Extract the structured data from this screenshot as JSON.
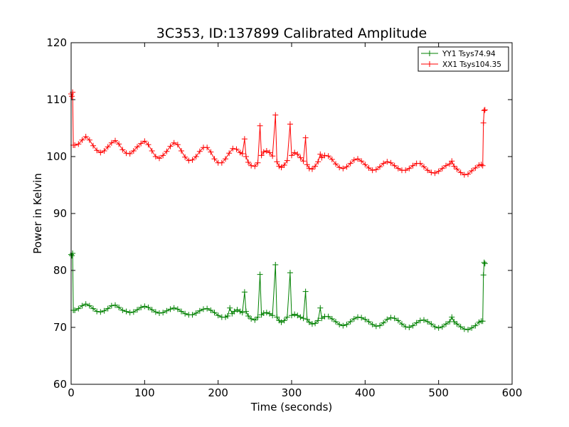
{
  "chart_data": {
    "type": "line",
    "title": "3C353, ID:137899 Calibrated Amplitude",
    "xlabel": "Time (seconds)",
    "ylabel": "Power in Kelvin",
    "xlim": [
      0,
      600
    ],
    "ylim": [
      60,
      120
    ],
    "xticks": [
      "0",
      "100",
      "200",
      "300",
      "400",
      "500",
      "600"
    ],
    "yticks": [
      "60",
      "70",
      "80",
      "90",
      "100",
      "110",
      "120"
    ],
    "grid": false,
    "legend_position": "top-right",
    "series": [
      {
        "name": "YY1 Tsys74.94",
        "color": "#008000",
        "marker": "+",
        "points": [
          [
            0,
            82.8
          ],
          [
            1,
            82.6
          ],
          [
            2,
            83.0
          ],
          [
            3,
            73.0
          ],
          [
            5,
            73.0
          ],
          [
            10,
            73.3
          ],
          [
            15,
            73.8
          ],
          [
            20,
            74.1
          ],
          [
            25,
            73.8
          ],
          [
            30,
            73.3
          ],
          [
            35,
            72.8
          ],
          [
            40,
            72.7
          ],
          [
            45,
            72.9
          ],
          [
            50,
            73.3
          ],
          [
            55,
            73.8
          ],
          [
            60,
            73.9
          ],
          [
            65,
            73.5
          ],
          [
            70,
            73.0
          ],
          [
            75,
            72.8
          ],
          [
            80,
            72.6
          ],
          [
            85,
            72.7
          ],
          [
            90,
            73.1
          ],
          [
            95,
            73.5
          ],
          [
            100,
            73.7
          ],
          [
            105,
            73.5
          ],
          [
            110,
            73.1
          ],
          [
            115,
            72.7
          ],
          [
            120,
            72.5
          ],
          [
            125,
            72.6
          ],
          [
            130,
            72.9
          ],
          [
            135,
            73.2
          ],
          [
            140,
            73.4
          ],
          [
            145,
            73.2
          ],
          [
            150,
            72.8
          ],
          [
            155,
            72.4
          ],
          [
            160,
            72.2
          ],
          [
            165,
            72.2
          ],
          [
            170,
            72.5
          ],
          [
            175,
            72.9
          ],
          [
            180,
            73.2
          ],
          [
            185,
            73.3
          ],
          [
            190,
            73.0
          ],
          [
            195,
            72.6
          ],
          [
            200,
            72.1
          ],
          [
            205,
            71.8
          ],
          [
            210,
            71.8
          ],
          [
            213,
            72.0
          ],
          [
            216,
            73.4
          ],
          [
            219,
            72.4
          ],
          [
            222,
            72.8
          ],
          [
            226,
            73.1
          ],
          [
            230,
            72.8
          ],
          [
            233,
            72.6
          ],
          [
            236,
            76.2
          ],
          [
            238,
            72.8
          ],
          [
            241,
            72.0
          ],
          [
            245,
            71.5
          ],
          [
            250,
            71.3
          ],
          [
            254,
            71.8
          ],
          [
            257,
            79.3
          ],
          [
            259,
            72.2
          ],
          [
            262,
            72.5
          ],
          [
            266,
            72.6
          ],
          [
            270,
            72.4
          ],
          [
            274,
            72.1
          ],
          [
            278,
            81.0
          ],
          [
            280,
            71.8
          ],
          [
            283,
            71.2
          ],
          [
            286,
            70.9
          ],
          [
            290,
            71.2
          ],
          [
            294,
            71.8
          ],
          [
            298,
            79.6
          ],
          [
            300,
            72.1
          ],
          [
            304,
            72.3
          ],
          [
            308,
            72.1
          ],
          [
            312,
            71.8
          ],
          [
            316,
            71.6
          ],
          [
            319,
            76.3
          ],
          [
            321,
            71.4
          ],
          [
            324,
            70.9
          ],
          [
            328,
            70.6
          ],
          [
            332,
            70.7
          ],
          [
            336,
            71.2
          ],
          [
            339,
            73.4
          ],
          [
            341,
            71.6
          ],
          [
            345,
            71.9
          ],
          [
            350,
            71.9
          ],
          [
            355,
            71.5
          ],
          [
            360,
            71.0
          ],
          [
            365,
            70.5
          ],
          [
            370,
            70.3
          ],
          [
            375,
            70.5
          ],
          [
            380,
            71.0
          ],
          [
            385,
            71.5
          ],
          [
            390,
            71.8
          ],
          [
            395,
            71.7
          ],
          [
            400,
            71.4
          ],
          [
            405,
            71.0
          ],
          [
            410,
            70.5
          ],
          [
            415,
            70.2
          ],
          [
            420,
            70.3
          ],
          [
            425,
            70.8
          ],
          [
            430,
            71.4
          ],
          [
            435,
            71.7
          ],
          [
            440,
            71.6
          ],
          [
            445,
            71.2
          ],
          [
            450,
            70.6
          ],
          [
            455,
            70.1
          ],
          [
            460,
            70.0
          ],
          [
            465,
            70.3
          ],
          [
            470,
            70.8
          ],
          [
            475,
            71.2
          ],
          [
            480,
            71.3
          ],
          [
            485,
            71.0
          ],
          [
            490,
            70.6
          ],
          [
            495,
            70.1
          ],
          [
            500,
            69.9
          ],
          [
            505,
            70.1
          ],
          [
            510,
            70.6
          ],
          [
            515,
            71.0
          ],
          [
            518,
            71.8
          ],
          [
            521,
            71.0
          ],
          [
            525,
            70.6
          ],
          [
            530,
            70.1
          ],
          [
            535,
            69.7
          ],
          [
            540,
            69.6
          ],
          [
            545,
            69.9
          ],
          [
            550,
            70.3
          ],
          [
            555,
            70.9
          ],
          [
            558,
            71.1
          ],
          [
            560,
            71.1
          ],
          [
            561,
            79.2
          ],
          [
            562,
            81.4
          ],
          [
            563,
            81.2
          ]
        ]
      },
      {
        "name": "XX1 Tsys104.35",
        "color": "#ff0000",
        "marker": "+",
        "points": [
          [
            0,
            111.0
          ],
          [
            1,
            110.6
          ],
          [
            2,
            111.3
          ],
          [
            3,
            102.0
          ],
          [
            5,
            102.0
          ],
          [
            10,
            102.2
          ],
          [
            15,
            102.9
          ],
          [
            20,
            103.5
          ],
          [
            25,
            102.9
          ],
          [
            30,
            101.9
          ],
          [
            35,
            101.1
          ],
          [
            40,
            100.7
          ],
          [
            45,
            101.0
          ],
          [
            50,
            101.7
          ],
          [
            55,
            102.4
          ],
          [
            60,
            102.8
          ],
          [
            65,
            102.2
          ],
          [
            70,
            101.2
          ],
          [
            75,
            100.6
          ],
          [
            80,
            100.5
          ],
          [
            85,
            101.0
          ],
          [
            90,
            101.7
          ],
          [
            95,
            102.3
          ],
          [
            100,
            102.7
          ],
          [
            105,
            102.1
          ],
          [
            110,
            101.0
          ],
          [
            115,
            100.0
          ],
          [
            120,
            99.7
          ],
          [
            125,
            100.2
          ],
          [
            130,
            100.9
          ],
          [
            135,
            101.8
          ],
          [
            140,
            102.4
          ],
          [
            145,
            102.1
          ],
          [
            150,
            101.0
          ],
          [
            155,
            99.9
          ],
          [
            160,
            99.3
          ],
          [
            165,
            99.4
          ],
          [
            170,
            100.0
          ],
          [
            175,
            100.9
          ],
          [
            180,
            101.6
          ],
          [
            185,
            101.6
          ],
          [
            190,
            100.8
          ],
          [
            195,
            99.6
          ],
          [
            200,
            98.9
          ],
          [
            205,
            98.9
          ],
          [
            210,
            99.6
          ],
          [
            215,
            100.6
          ],
          [
            220,
            101.4
          ],
          [
            225,
            101.3
          ],
          [
            230,
            100.7
          ],
          [
            233,
            100.5
          ],
          [
            236,
            103.1
          ],
          [
            238,
            100.0
          ],
          [
            241,
            99.0
          ],
          [
            245,
            98.4
          ],
          [
            250,
            98.3
          ],
          [
            254,
            98.9
          ],
          [
            257,
            105.4
          ],
          [
            259,
            100.2
          ],
          [
            262,
            100.8
          ],
          [
            266,
            101.0
          ],
          [
            270,
            100.7
          ],
          [
            274,
            100.1
          ],
          [
            278,
            107.3
          ],
          [
            280,
            99.1
          ],
          [
            283,
            98.3
          ],
          [
            286,
            98.1
          ],
          [
            290,
            98.5
          ],
          [
            294,
            99.3
          ],
          [
            298,
            105.7
          ],
          [
            300,
            100.2
          ],
          [
            304,
            100.7
          ],
          [
            308,
            100.4
          ],
          [
            312,
            99.8
          ],
          [
            316,
            99.2
          ],
          [
            319,
            103.3
          ],
          [
            321,
            98.6
          ],
          [
            324,
            97.9
          ],
          [
            328,
            97.8
          ],
          [
            332,
            98.3
          ],
          [
            336,
            99.1
          ],
          [
            339,
            100.4
          ],
          [
            341,
            99.8
          ],
          [
            345,
            100.2
          ],
          [
            350,
            100.1
          ],
          [
            355,
            99.5
          ],
          [
            360,
            98.7
          ],
          [
            365,
            98.1
          ],
          [
            370,
            97.9
          ],
          [
            375,
            98.2
          ],
          [
            380,
            98.8
          ],
          [
            385,
            99.4
          ],
          [
            390,
            99.6
          ],
          [
            395,
            99.2
          ],
          [
            400,
            98.6
          ],
          [
            405,
            98.0
          ],
          [
            410,
            97.6
          ],
          [
            415,
            97.7
          ],
          [
            420,
            98.2
          ],
          [
            425,
            98.8
          ],
          [
            430,
            99.1
          ],
          [
            435,
            98.9
          ],
          [
            440,
            98.4
          ],
          [
            445,
            97.9
          ],
          [
            450,
            97.6
          ],
          [
            455,
            97.6
          ],
          [
            460,
            97.9
          ],
          [
            465,
            98.4
          ],
          [
            470,
            98.8
          ],
          [
            475,
            98.8
          ],
          [
            480,
            98.2
          ],
          [
            485,
            97.6
          ],
          [
            490,
            97.2
          ],
          [
            495,
            97.1
          ],
          [
            500,
            97.4
          ],
          [
            505,
            97.9
          ],
          [
            510,
            98.4
          ],
          [
            515,
            98.7
          ],
          [
            518,
            99.2
          ],
          [
            521,
            98.3
          ],
          [
            525,
            97.8
          ],
          [
            530,
            97.2
          ],
          [
            535,
            96.8
          ],
          [
            540,
            96.9
          ],
          [
            545,
            97.5
          ],
          [
            550,
            98.0
          ],
          [
            555,
            98.5
          ],
          [
            558,
            98.6
          ],
          [
            560,
            98.4
          ],
          [
            561,
            105.9
          ],
          [
            562,
            108.1
          ],
          [
            563,
            108.2
          ]
        ]
      }
    ]
  }
}
